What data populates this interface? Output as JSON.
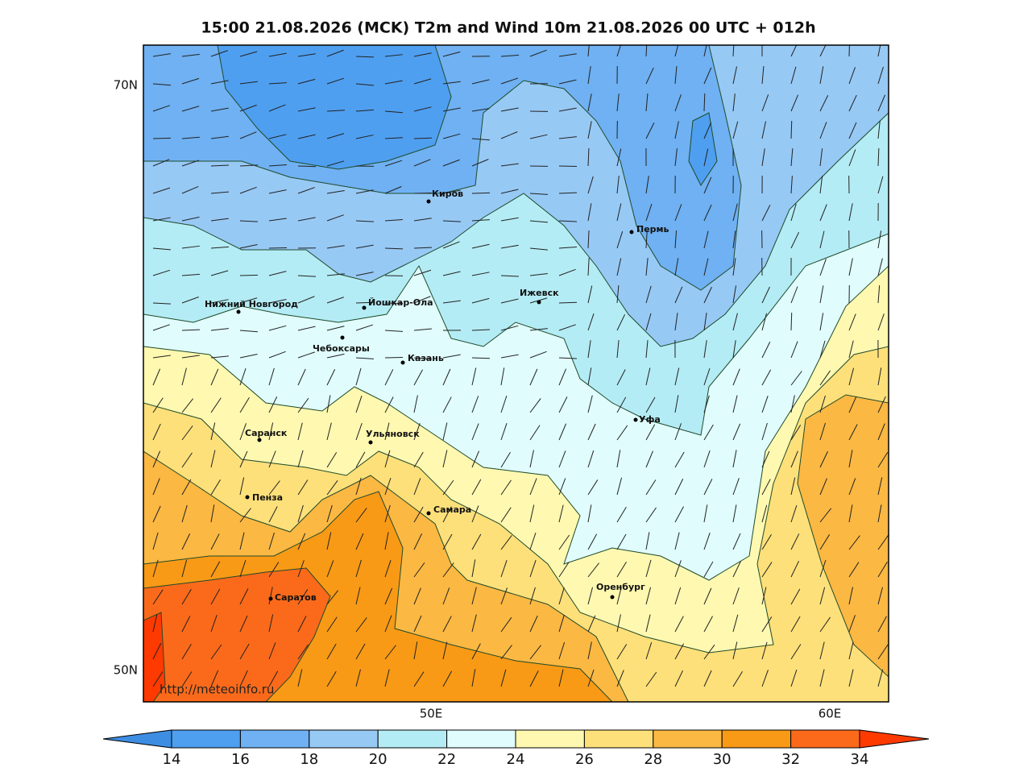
{
  "title": "15:00 21.08.2026 (MCK) T2m and Wind 10m 21.08.2026 00 UTC + 012h",
  "lat_labels": [
    "70N",
    "50N"
  ],
  "lon_labels": [
    "50E",
    "60E"
  ],
  "cities": [
    "Киров",
    "Пермь",
    "Нижний Новгород",
    "Йошкар-Ола",
    "Ижевск",
    "Чебоксары",
    "Казань",
    "Уфа",
    "Саранск",
    "Ульяновск",
    "Пенза",
    "Самара",
    "Оренбург",
    "Саратов"
  ],
  "source": "http://meteoinfo.ru",
  "colorbar": {
    "ticks": [
      14,
      16,
      18,
      20,
      22,
      24,
      26,
      28,
      30,
      32,
      34
    ],
    "colors": [
      "#3d8ee3",
      "#4f9ff0",
      "#6fb1f2",
      "#97c9f5",
      "#b4ecf5",
      "#e0fcfc",
      "#fff8b0",
      "#fde07a",
      "#fbb843",
      "#f89a16",
      "#fb6a1a",
      "#ff3a00"
    ]
  }
}
